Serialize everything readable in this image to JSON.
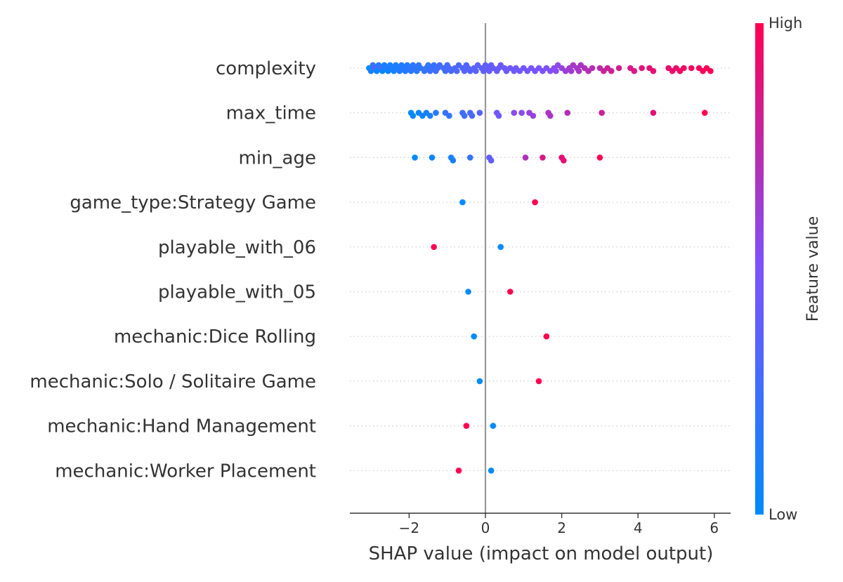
{
  "chart_data": {
    "type": "scatter",
    "subtype": "shap-beeswarm-summary",
    "title": "",
    "xlabel": "SHAP value (impact on model output)",
    "xlim": [
      -3.5,
      6.5
    ],
    "xticks": [
      -2,
      0,
      2,
      4,
      6
    ],
    "xtick_labels": [
      "−2",
      "0",
      "2",
      "4",
      "6"
    ],
    "zero_line": true,
    "grid": false,
    "colorbar": {
      "label": "Feature value",
      "high_label": "High",
      "low_label": "Low",
      "low_color": "#008bfb",
      "mid_color": "#7c52ff",
      "high_color": "#ff0052"
    },
    "features": [
      {
        "name": "complexity",
        "points": [
          [
            -3.05,
            0.0
          ],
          [
            -3.0,
            0.1
          ],
          [
            -2.95,
            0.2
          ],
          [
            -2.9,
            0.3
          ],
          [
            -2.85,
            0.05
          ],
          [
            -2.8,
            0.15
          ],
          [
            -2.75,
            0.25
          ],
          [
            -2.7,
            0.05
          ],
          [
            -2.65,
            0.1
          ],
          [
            -2.6,
            0.15
          ],
          [
            -2.55,
            0.05
          ],
          [
            -2.5,
            0.1
          ],
          [
            -2.45,
            0.12
          ],
          [
            -2.4,
            0.1
          ],
          [
            -2.35,
            0.12
          ],
          [
            -2.3,
            0.1
          ],
          [
            -2.25,
            0.15
          ],
          [
            -2.2,
            0.12
          ],
          [
            -2.15,
            0.15
          ],
          [
            -2.1,
            0.14
          ],
          [
            -2.05,
            0.15
          ],
          [
            -2.0,
            0.16
          ],
          [
            -1.95,
            0.18
          ],
          [
            -1.9,
            0.16
          ],
          [
            -1.85,
            0.18
          ],
          [
            -1.8,
            0.17
          ],
          [
            -1.75,
            0.2
          ],
          [
            -1.7,
            0.18
          ],
          [
            -1.6,
            0.2
          ],
          [
            -1.55,
            0.22
          ],
          [
            -1.5,
            0.2
          ],
          [
            -1.45,
            0.22
          ],
          [
            -1.4,
            0.24
          ],
          [
            -1.35,
            0.22
          ],
          [
            -1.3,
            0.25
          ],
          [
            -1.25,
            0.24
          ],
          [
            -1.2,
            0.26
          ],
          [
            -1.1,
            0.27
          ],
          [
            -1.05,
            0.28
          ],
          [
            -1.0,
            0.27
          ],
          [
            -0.95,
            0.3
          ],
          [
            -0.9,
            0.29
          ],
          [
            -0.8,
            0.3
          ],
          [
            -0.75,
            0.31
          ],
          [
            -0.7,
            0.32
          ],
          [
            -0.6,
            0.32
          ],
          [
            -0.55,
            0.33
          ],
          [
            -0.5,
            0.33
          ],
          [
            -0.45,
            0.34
          ],
          [
            -0.4,
            0.35
          ],
          [
            -0.3,
            0.35
          ],
          [
            -0.25,
            0.36
          ],
          [
            -0.2,
            0.37
          ],
          [
            -0.1,
            0.37
          ],
          [
            -0.05,
            0.38
          ],
          [
            0.0,
            0.38
          ],
          [
            0.05,
            0.39
          ],
          [
            0.1,
            0.4
          ],
          [
            0.15,
            0.4
          ],
          [
            0.2,
            0.41
          ],
          [
            0.3,
            0.41
          ],
          [
            0.35,
            0.42
          ],
          [
            0.4,
            0.42
          ],
          [
            0.5,
            0.43
          ],
          [
            0.55,
            0.43
          ],
          [
            0.65,
            0.44
          ],
          [
            0.75,
            0.45
          ],
          [
            0.8,
            0.44
          ],
          [
            0.9,
            0.45
          ],
          [
            1.0,
            0.46
          ],
          [
            1.1,
            0.47
          ],
          [
            1.2,
            0.48
          ],
          [
            1.3,
            0.48
          ],
          [
            1.4,
            0.5
          ],
          [
            1.5,
            0.5
          ],
          [
            1.6,
            0.5
          ],
          [
            1.7,
            0.52
          ],
          [
            1.8,
            0.55
          ],
          [
            1.85,
            0.55
          ],
          [
            1.9,
            0.56
          ],
          [
            2.0,
            0.6
          ],
          [
            2.1,
            0.62
          ],
          [
            2.2,
            0.63
          ],
          [
            2.25,
            0.64
          ],
          [
            2.3,
            0.66
          ],
          [
            2.4,
            0.65
          ],
          [
            2.45,
            0.67
          ],
          [
            2.5,
            0.68
          ],
          [
            2.6,
            0.7
          ],
          [
            2.7,
            0.72
          ],
          [
            2.8,
            0.72
          ],
          [
            3.0,
            0.75
          ],
          [
            3.1,
            0.78
          ],
          [
            3.2,
            0.8
          ],
          [
            3.3,
            0.8
          ],
          [
            3.5,
            0.82
          ],
          [
            3.8,
            0.85
          ],
          [
            3.9,
            0.85
          ],
          [
            4.1,
            0.88
          ],
          [
            4.3,
            0.9
          ],
          [
            4.4,
            0.9
          ],
          [
            4.8,
            0.92
          ],
          [
            4.9,
            0.92
          ],
          [
            5.0,
            0.94
          ],
          [
            5.1,
            0.95
          ],
          [
            5.2,
            0.95
          ],
          [
            5.4,
            0.97
          ],
          [
            5.6,
            0.98
          ],
          [
            5.7,
            0.98
          ],
          [
            5.8,
            0.99
          ],
          [
            5.9,
            1.0
          ]
        ]
      },
      {
        "name": "max_time",
        "points": [
          [
            -1.95,
            0.0
          ],
          [
            -1.9,
            0.0
          ],
          [
            -1.75,
            0.05
          ],
          [
            -1.65,
            0.05
          ],
          [
            -1.55,
            0.1
          ],
          [
            -1.45,
            0.1
          ],
          [
            -1.3,
            0.15
          ],
          [
            -1.05,
            0.2
          ],
          [
            -0.95,
            0.2
          ],
          [
            -0.6,
            0.25
          ],
          [
            -0.55,
            0.25
          ],
          [
            -0.4,
            0.3
          ],
          [
            -0.35,
            0.3
          ],
          [
            -0.15,
            0.35
          ],
          [
            0.3,
            0.45
          ],
          [
            0.35,
            0.45
          ],
          [
            0.75,
            0.55
          ],
          [
            0.95,
            0.55
          ],
          [
            1.15,
            0.6
          ],
          [
            1.25,
            0.6
          ],
          [
            1.65,
            0.68
          ],
          [
            1.7,
            0.68
          ],
          [
            2.15,
            0.72
          ],
          [
            3.05,
            0.8
          ],
          [
            4.4,
            0.9
          ],
          [
            5.75,
            1.0
          ]
        ]
      },
      {
        "name": "min_age",
        "points": [
          [
            -1.85,
            0.0
          ],
          [
            -1.4,
            0.05
          ],
          [
            -0.9,
            0.1
          ],
          [
            -0.85,
            0.1
          ],
          [
            -0.4,
            0.2
          ],
          [
            0.1,
            0.4
          ],
          [
            0.15,
            0.4
          ],
          [
            1.05,
            0.7
          ],
          [
            1.5,
            0.85
          ],
          [
            2.0,
            0.9
          ],
          [
            2.05,
            0.9
          ],
          [
            3.0,
            1.0
          ]
        ]
      },
      {
        "name": "game_type:Strategy Game",
        "points": [
          [
            -0.6,
            0.0
          ],
          [
            1.3,
            1.0
          ]
        ]
      },
      {
        "name": "playable_with_06",
        "points": [
          [
            0.4,
            0.0
          ],
          [
            -1.35,
            1.0
          ]
        ]
      },
      {
        "name": "playable_with_05",
        "points": [
          [
            -0.45,
            0.0
          ],
          [
            0.65,
            1.0
          ]
        ]
      },
      {
        "name": "mechanic:Dice Rolling",
        "points": [
          [
            -0.3,
            0.0
          ],
          [
            1.6,
            1.0
          ]
        ]
      },
      {
        "name": "mechanic:Solo / Solitaire Game",
        "points": [
          [
            -0.15,
            0.0
          ],
          [
            1.4,
            1.0
          ]
        ]
      },
      {
        "name": "mechanic:Hand Management",
        "points": [
          [
            0.2,
            0.0
          ],
          [
            -0.5,
            1.0
          ]
        ]
      },
      {
        "name": "mechanic:Worker Placement",
        "points": [
          [
            0.15,
            0.0
          ],
          [
            -0.7,
            1.0
          ]
        ]
      }
    ]
  }
}
